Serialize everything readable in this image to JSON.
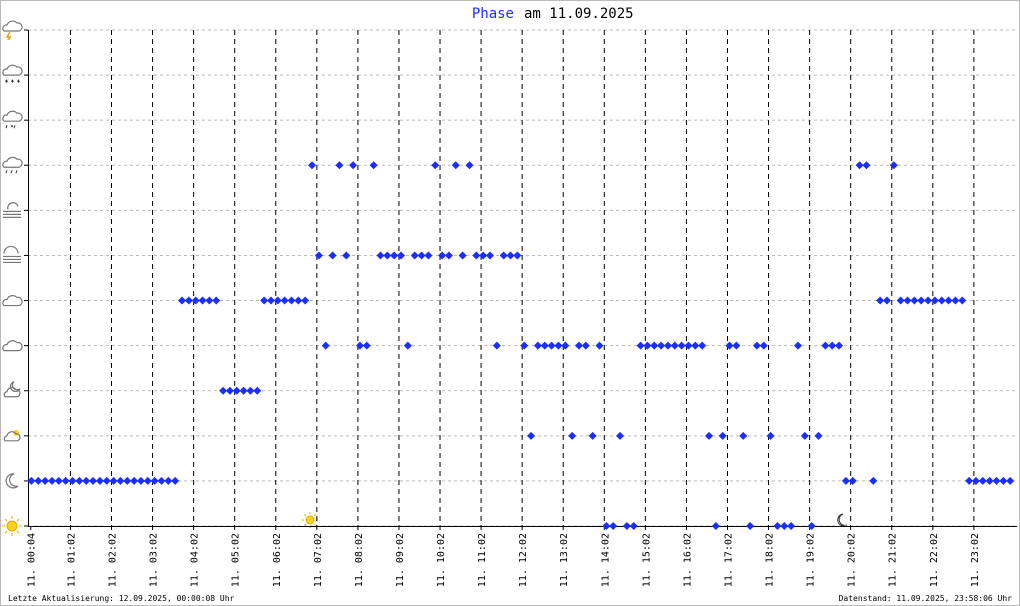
{
  "chart_data": {
    "type": "scatter",
    "title_keyword": "Phase",
    "title": "am 11.09.2025",
    "footer_left": "Letzte Aktualisierung: 12.09.2025, 00:00:08 Uhr",
    "footer_right": "Datenstand: 11.09.2025, 23:58:06 Uhr",
    "color": "#1a2eff",
    "grid": true,
    "xlim": [
      0,
      1445
    ],
    "ylim": [
      0,
      11
    ],
    "yticks": [
      0,
      1,
      2,
      3,
      4,
      5,
      6,
      7,
      8,
      9,
      10,
      11
    ],
    "xticks": [
      {
        "value": 4,
        "label": "11. 00:04"
      },
      {
        "value": 62,
        "label": "11. 01:02"
      },
      {
        "value": 122,
        "label": "11. 02:02"
      },
      {
        "value": 182,
        "label": "11. 03:02"
      },
      {
        "value": 242,
        "label": "11. 04:02"
      },
      {
        "value": 302,
        "label": "11. 05:02"
      },
      {
        "value": 362,
        "label": "11. 06:02"
      },
      {
        "value": 422,
        "label": "11. 07:02"
      },
      {
        "value": 482,
        "label": "11. 08:02"
      },
      {
        "value": 542,
        "label": "11. 09:02"
      },
      {
        "value": 602,
        "label": "11. 10:02"
      },
      {
        "value": 662,
        "label": "11. 11:02"
      },
      {
        "value": 722,
        "label": "11. 12:02"
      },
      {
        "value": 782,
        "label": "11. 13:02"
      },
      {
        "value": 842,
        "label": "11. 14:02"
      },
      {
        "value": 902,
        "label": "11. 15:02"
      },
      {
        "value": 962,
        "label": "11. 16:02"
      },
      {
        "value": 1022,
        "label": "11. 17:02"
      },
      {
        "value": 1082,
        "label": "11. 18:02"
      },
      {
        "value": 1142,
        "label": "11. 19:02"
      },
      {
        "value": 1202,
        "label": "11. 20:02"
      },
      {
        "value": 1262,
        "label": "11. 21:02"
      },
      {
        "value": 1322,
        "label": "11. 22:02"
      },
      {
        "value": 1382,
        "label": "11. 23:02"
      }
    ],
    "x": [
      5,
      15,
      25,
      35,
      45,
      55,
      65,
      75,
      85,
      95,
      105,
      115,
      125,
      135,
      145,
      155,
      165,
      175,
      185,
      195,
      205,
      215,
      225,
      235,
      245,
      255,
      265,
      275,
      285,
      295,
      305,
      315,
      325,
      335,
      345,
      355,
      365,
      375,
      385,
      395,
      405,
      415,
      425,
      435,
      445,
      455,
      465,
      475,
      485,
      495,
      505,
      515,
      525,
      535,
      545,
      555,
      565,
      575,
      585,
      595,
      605,
      615,
      625,
      635,
      645,
      655,
      665,
      675,
      685,
      695,
      705,
      715,
      725,
      735,
      745,
      755,
      765,
      775,
      785,
      795,
      805,
      815,
      825,
      835,
      845,
      855,
      865,
      875,
      885,
      895,
      905,
      915,
      925,
      935,
      945,
      955,
      965,
      975,
      985,
      995,
      1005,
      1015,
      1025,
      1035,
      1045,
      1055,
      1065,
      1075,
      1085,
      1095,
      1105,
      1115,
      1125,
      1135,
      1145,
      1155,
      1165,
      1175,
      1185,
      1195,
      1205,
      1215,
      1225,
      1235,
      1245,
      1255,
      1265,
      1275,
      1285,
      1295,
      1305,
      1315,
      1325,
      1335,
      1345,
      1355,
      1365,
      1375,
      1385,
      1395,
      1405,
      1415,
      1425,
      1435
    ],
    "values": [
      1,
      1,
      1,
      1,
      1,
      1,
      1,
      1,
      1,
      1,
      1,
      1,
      1,
      1,
      1,
      1,
      1,
      1,
      1,
      1,
      1,
      1,
      5,
      5,
      5,
      5,
      5,
      5,
      3,
      3,
      3,
      3,
      3,
      3,
      5,
      5,
      5,
      5,
      5,
      5,
      5,
      8,
      6,
      4,
      6,
      8,
      6,
      8,
      4,
      4,
      8,
      6,
      6,
      6,
      6,
      4,
      6,
      6,
      6,
      8,
      6,
      6,
      8,
      6,
      8,
      6,
      6,
      6,
      4,
      6,
      6,
      6,
      4,
      2,
      4,
      4,
      4,
      4,
      4,
      2,
      4,
      4,
      2,
      4,
      0,
      0,
      2,
      0,
      0,
      4,
      4,
      4,
      4,
      4,
      4,
      4,
      4,
      4,
      4,
      2,
      0,
      2,
      4,
      4,
      2,
      0,
      4,
      4,
      2,
      0,
      0,
      0,
      4,
      2,
      0,
      2,
      4,
      4,
      4,
      1,
      1,
      8,
      8,
      1,
      5,
      5,
      8,
      5,
      5,
      5,
      5,
      5,
      5,
      5,
      5,
      5,
      5,
      1,
      1,
      1,
      1,
      1,
      1,
      1
    ]
  }
}
